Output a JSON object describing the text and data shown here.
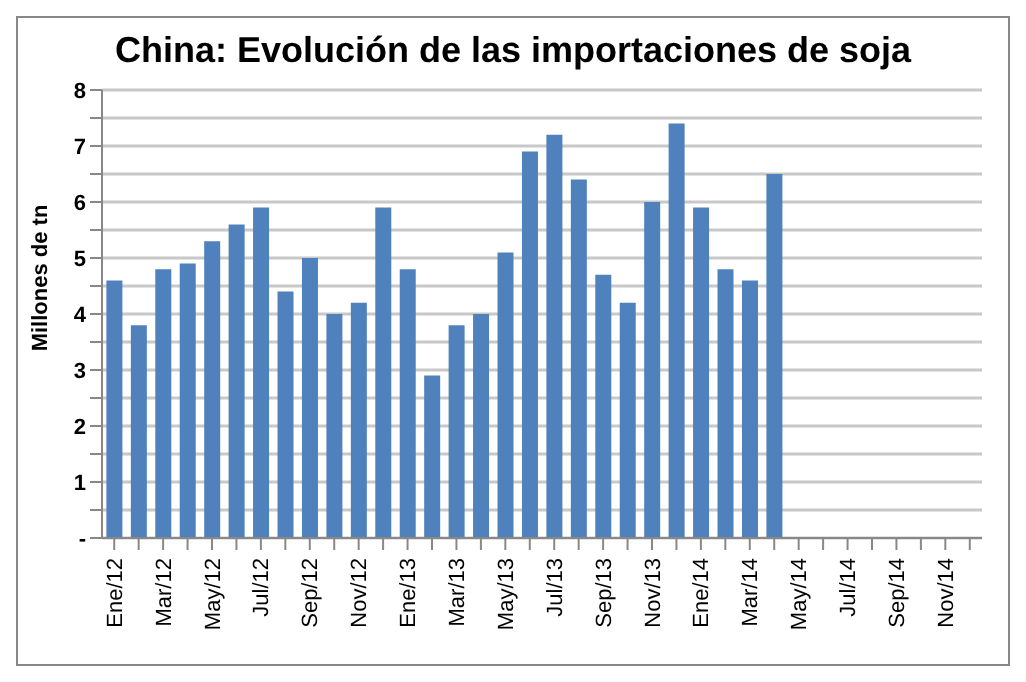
{
  "chart_data": {
    "type": "bar",
    "title": "China: Evolución de las importaciones de soja",
    "ylabel": "Millones de tn",
    "categories": [
      "Ene/12",
      null,
      "Mar/12",
      null,
      "May/12",
      null,
      "Jul/12",
      null,
      "Sep/12",
      null,
      "Nov/12",
      null,
      "Ene/13",
      null,
      "Mar/13",
      null,
      "May/13",
      null,
      "Jul/13",
      null,
      "Sep/13",
      null,
      "Nov/13",
      null,
      "Ene/14",
      null,
      "Mar/14",
      null,
      "May/14",
      null,
      "Jul/14",
      null,
      "Sep/14",
      null,
      "Nov/14",
      null
    ],
    "values": [
      4.6,
      3.8,
      4.8,
      4.9,
      5.3,
      5.6,
      5.9,
      4.4,
      5.0,
      4.0,
      4.2,
      5.9,
      4.8,
      2.9,
      3.8,
      4.0,
      5.1,
      6.9,
      7.2,
      6.4,
      4.7,
      4.2,
      6.0,
      7.4,
      5.9,
      4.8,
      4.6,
      6.5,
      null,
      null,
      null,
      null,
      null,
      null,
      null,
      null
    ],
    "color": "#4f81bd",
    "ylim": [
      0,
      8
    ],
    "yticks": [
      {
        "value": 0,
        "label": "-"
      },
      {
        "value": 0.5,
        "label": null
      },
      1,
      {
        "value": 1.5,
        "label": null
      },
      2,
      {
        "value": 2.5,
        "label": null
      },
      3,
      {
        "value": 3.5,
        "label": null
      },
      4,
      {
        "value": 4.5,
        "label": null
      },
      5,
      {
        "value": 5.5,
        "label": null
      },
      6,
      {
        "value": 6.5,
        "label": null
      },
      7,
      {
        "value": 7.5,
        "label": null
      },
      8
    ],
    "grid": "y"
  }
}
